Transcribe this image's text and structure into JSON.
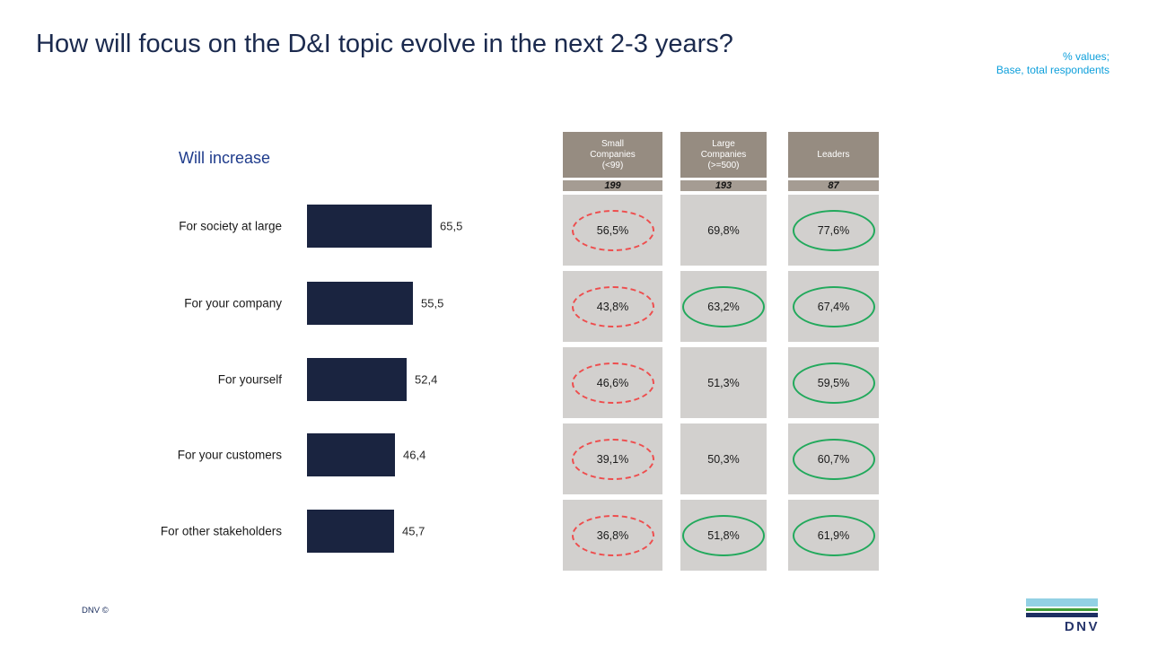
{
  "slide": {
    "title": "How will focus on the D&I topic evolve in the next 2-3 years?",
    "note_line1": "% values;",
    "note_line2": "Base, total respondents",
    "footer_copyright": "DNV ©",
    "logo_text": "DNV"
  },
  "colors": {
    "title_navy": "#1b2a4e",
    "note_blue": "#0d9fdb",
    "bar_navy": "#1a2440",
    "chart_title_blue": "#1f3c8c",
    "table_header_bg": "#968c81",
    "table_base_bg": "#a59c93",
    "table_cell_bg": "#d2d0ce",
    "highlight_red": "#ee4d4d",
    "highlight_green": "#22a95c",
    "logo_light_blue": "#93d1e4",
    "logo_green": "#3f9c35",
    "logo_navy": "#1e2f63"
  },
  "chart_data": [
    {
      "type": "bar",
      "title": "Will increase",
      "orientation": "horizontal",
      "categories": [
        "For society at large",
        "For your company",
        "For yourself",
        "For your customers",
        "For other stakeholders"
      ],
      "values": [
        65.5,
        55.5,
        52.4,
        46.4,
        45.7
      ],
      "value_labels": [
        "65,5",
        "55,5",
        "52,4",
        "46,4",
        "45,7"
      ],
      "xlim": [
        0,
        100
      ],
      "bar_color": "#1a2440",
      "grid": false,
      "legend": "none"
    },
    {
      "type": "table",
      "row_labels": [
        "For society at large",
        "For your company",
        "For yourself",
        "For your customers",
        "For other stakeholders"
      ],
      "columns": [
        {
          "header": "Small Companies (<99)",
          "header_lines": [
            "Small",
            "Companies",
            "(<99)"
          ],
          "base": "199",
          "values": [
            "56,5%",
            "43,8%",
            "46,6%",
            "39,1%",
            "36,8%"
          ],
          "highlights": [
            "red-dashed",
            "red-dashed",
            "red-dashed",
            "red-dashed",
            "red-dashed"
          ]
        },
        {
          "header": "Large Companies (>=500)",
          "header_lines": [
            "Large",
            "Companies",
            "(>=500)"
          ],
          "base": "193",
          "values": [
            "69,8%",
            "63,2%",
            "51,3%",
            "50,3%",
            "51,8%"
          ],
          "highlights": [
            "none",
            "green",
            "none",
            "none",
            "green"
          ]
        },
        {
          "header": "Leaders",
          "header_lines": [
            "Leaders"
          ],
          "base": "87",
          "values": [
            "77,6%",
            "67,4%",
            "59,5%",
            "60,7%",
            "61,9%"
          ],
          "highlights": [
            "green",
            "green",
            "green",
            "green",
            "green"
          ]
        }
      ]
    }
  ]
}
